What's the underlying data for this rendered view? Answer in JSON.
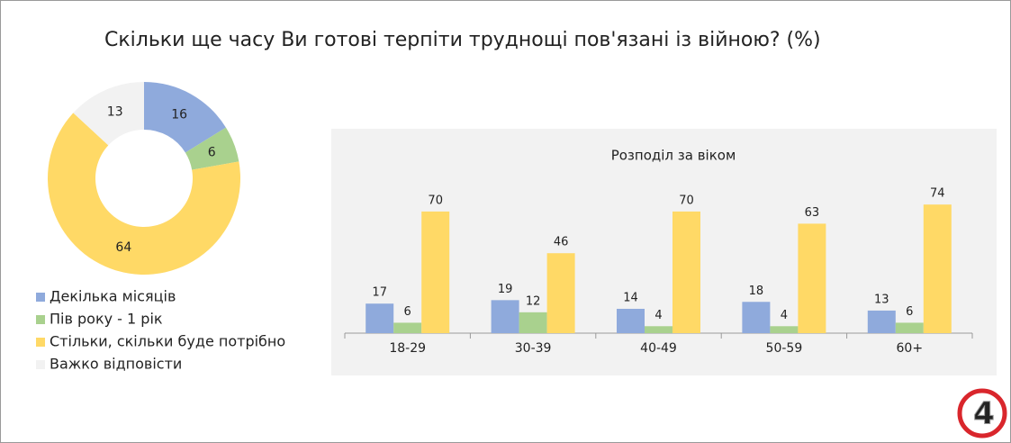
{
  "title": "Скільки ще часу Ви готові терпіти труднощі пов'язані із війною? (%)",
  "logo": "4",
  "chart_data": [
    {
      "type": "pie",
      "categories": [
        "Декілька місяців",
        "Пів року - 1 рік",
        "Стільки, скільки буде потрібно",
        "Важко відповісти"
      ],
      "values": [
        16,
        6,
        64,
        13
      ],
      "colors": [
        "#8faadc",
        "#a9d18e",
        "#ffd966",
        "#f2f2f2"
      ]
    },
    {
      "type": "bar",
      "title": "Розподіл за віком",
      "categories": [
        "18-29",
        "30-39",
        "40-49",
        "50-59",
        "60+"
      ],
      "series": [
        {
          "color": "#8faadc",
          "values": [
            17,
            19,
            14,
            18,
            13
          ]
        },
        {
          "color": "#a9d18e",
          "values": [
            6,
            12,
            4,
            4,
            6
          ]
        },
        {
          "color": "#ffd966",
          "values": [
            70,
            46,
            70,
            63,
            74
          ]
        }
      ]
    }
  ]
}
